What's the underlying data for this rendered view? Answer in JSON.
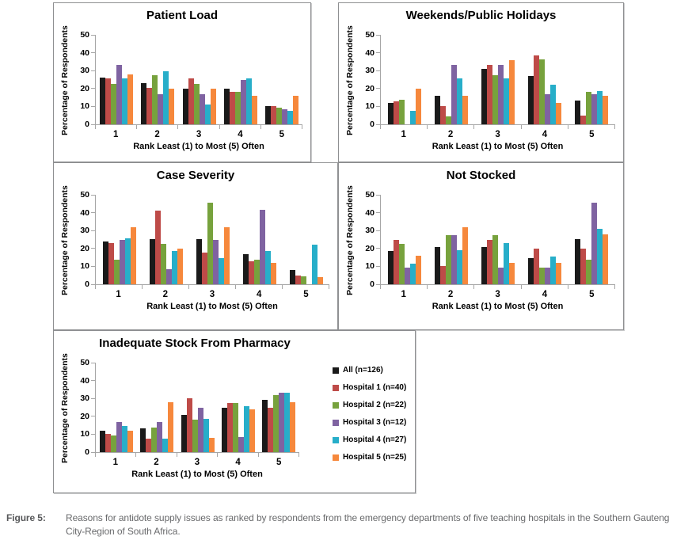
{
  "figure": {
    "caption_label": "Figure 5:",
    "caption_text": "Reasons for antidote supply issues as ranked by respondents from the emergency departments of five teaching hospitals in the Southern Gauteng City-Region of South Africa."
  },
  "axes": {
    "yticks": [
      50,
      40,
      30,
      20,
      10,
      0
    ],
    "ylim": [
      0,
      50
    ],
    "grid": false
  },
  "legend": [
    {
      "label": "All (n=126)",
      "color": "#1a1a1a"
    },
    {
      "label": "Hospital 1 (n=40)",
      "color": "#be4b48"
    },
    {
      "label": "Hospital 2 (n=22)",
      "color": "#77a23d"
    },
    {
      "label": "Hospital 3 (n=12)",
      "color": "#7f63a1"
    },
    {
      "label": "Hospital 4 (n=27)",
      "color": "#27aec9"
    },
    {
      "label": "Hospital 5 (n=25)",
      "color": "#f6883c"
    }
  ],
  "chart_data": [
    {
      "type": "bar",
      "title": "Patient Load",
      "xlabel": "Rank Least (1) to Most (5) Often",
      "ylabel": "Percentage of Respondents",
      "ylim": [
        0,
        50
      ],
      "categories": [
        "1",
        "2",
        "3",
        "4",
        "5"
      ],
      "series": [
        {
          "name": "All (n=126)",
          "color": "#1a1a1a",
          "values": [
            26.2,
            23.0,
            19.8,
            19.8,
            10.3
          ]
        },
        {
          "name": "Hospital 1 (n=40)",
          "color": "#be4b48",
          "values": [
            25.5,
            20.3,
            25.5,
            18.0,
            10.0
          ]
        },
        {
          "name": "Hospital 2 (n=22)",
          "color": "#77a23d",
          "values": [
            22.7,
            27.3,
            22.7,
            18.2,
            9.1
          ]
        },
        {
          "name": "Hospital 3 (n=12)",
          "color": "#7f63a1",
          "values": [
            33.3,
            16.7,
            16.7,
            25.0,
            8.3
          ]
        },
        {
          "name": "Hospital 4 (n=27)",
          "color": "#27aec9",
          "values": [
            25.9,
            29.6,
            11.1,
            25.9,
            7.4
          ]
        },
        {
          "name": "Hospital 5 (n=25)",
          "color": "#f6883c",
          "values": [
            28.0,
            20.0,
            20.0,
            16.0,
            16.0
          ]
        }
      ]
    },
    {
      "type": "bar",
      "title": "Weekends/Public Holidays",
      "xlabel": "Rank Least (1) to Most (5) Often",
      "ylabel": "Percentage of Respondents",
      "ylim": [
        0,
        50
      ],
      "categories": [
        "1",
        "2",
        "3",
        "4",
        "5"
      ],
      "series": [
        {
          "name": "All (n=126)",
          "color": "#1a1a1a",
          "values": [
            11.9,
            15.9,
            31.0,
            27.2,
            13.5
          ]
        },
        {
          "name": "Hospital 1 (n=40)",
          "color": "#be4b48",
          "values": [
            12.8,
            10.3,
            33.3,
            38.5,
            5.1
          ]
        },
        {
          "name": "Hospital 2 (n=22)",
          "color": "#77a23d",
          "values": [
            13.6,
            4.5,
            27.3,
            36.4,
            18.2
          ]
        },
        {
          "name": "Hospital 3 (n=12)",
          "color": "#7f63a1",
          "values": [
            0,
            33.3,
            33.3,
            16.7,
            16.7
          ]
        },
        {
          "name": "Hospital 4 (n=27)",
          "color": "#27aec9",
          "values": [
            7.4,
            25.9,
            25.9,
            22.2,
            18.5
          ]
        },
        {
          "name": "Hospital 5 (n=25)",
          "color": "#f6883c",
          "values": [
            20.0,
            16.0,
            36.0,
            12.0,
            16.0
          ]
        }
      ]
    },
    {
      "type": "bar",
      "title": "Case Severity",
      "xlabel": "Rank Least (1) to Most (5) Often",
      "ylabel": "Percentage of Respondents",
      "ylim": [
        0,
        50
      ],
      "categories": [
        "1",
        "2",
        "3",
        "4",
        "5"
      ],
      "series": [
        {
          "name": "All (n=126)",
          "color": "#1a1a1a",
          "values": [
            23.8,
            25.4,
            25.4,
            16.7,
            7.9
          ]
        },
        {
          "name": "Hospital 1 (n=40)",
          "color": "#be4b48",
          "values": [
            23.1,
            41.0,
            17.9,
            12.8,
            5.1
          ]
        },
        {
          "name": "Hospital 2 (n=22)",
          "color": "#77a23d",
          "values": [
            13.6,
            22.7,
            45.5,
            13.6,
            4.5
          ]
        },
        {
          "name": "Hospital 3 (n=12)",
          "color": "#7f63a1",
          "values": [
            25.0,
            8.3,
            25.0,
            41.7,
            0
          ]
        },
        {
          "name": "Hospital 4 (n=27)",
          "color": "#27aec9",
          "values": [
            25.9,
            18.5,
            14.8,
            18.5,
            22.2
          ]
        },
        {
          "name": "Hospital 5 (n=25)",
          "color": "#f6883c",
          "values": [
            32.0,
            20.0,
            32.0,
            12.0,
            4.0
          ]
        }
      ]
    },
    {
      "type": "bar",
      "title": "Not Stocked",
      "xlabel": "Rank Least (1) to Most (5) Often",
      "ylabel": "Percentage of Respondents",
      "ylim": [
        0,
        50
      ],
      "categories": [
        "1",
        "2",
        "3",
        "4",
        "5"
      ],
      "series": [
        {
          "name": "All (n=126)",
          "color": "#1a1a1a",
          "values": [
            18.7,
            21.0,
            21.0,
            14.6,
            25.2
          ]
        },
        {
          "name": "Hospital 1 (n=40)",
          "color": "#be4b48",
          "values": [
            25.0,
            10.3,
            25.0,
            20.0,
            20.0
          ]
        },
        {
          "name": "Hospital 2 (n=22)",
          "color": "#77a23d",
          "values": [
            22.7,
            27.3,
            27.3,
            9.1,
            13.6
          ]
        },
        {
          "name": "Hospital 3 (n=12)",
          "color": "#7f63a1",
          "values": [
            9.1,
            27.3,
            9.1,
            9.1,
            45.5
          ]
        },
        {
          "name": "Hospital 4 (n=27)",
          "color": "#27aec9",
          "values": [
            11.5,
            19.2,
            23.1,
            15.4,
            30.8
          ]
        },
        {
          "name": "Hospital 5 (n=25)",
          "color": "#f6883c",
          "values": [
            16.0,
            32.0,
            12.0,
            12.0,
            28.0
          ]
        }
      ]
    },
    {
      "type": "bar",
      "title": "Inadequate Stock From Pharmacy",
      "xlabel": "Rank Least (1) to Most (5) Often",
      "ylabel": "Percentage of Respondents",
      "ylim": [
        0,
        50
      ],
      "categories": [
        "1",
        "2",
        "3",
        "4",
        "5"
      ],
      "series": [
        {
          "name": "All (n=126)",
          "color": "#1a1a1a",
          "values": [
            12.0,
            13.5,
            20.6,
            24.6,
            29.4
          ]
        },
        {
          "name": "Hospital 1 (n=40)",
          "color": "#be4b48",
          "values": [
            10.0,
            7.5,
            30.0,
            27.5,
            25.0
          ]
        },
        {
          "name": "Hospital 2 (n=22)",
          "color": "#77a23d",
          "values": [
            9.1,
            13.6,
            18.2,
            27.3,
            31.8
          ]
        },
        {
          "name": "Hospital 3 (n=12)",
          "color": "#7f63a1",
          "values": [
            16.7,
            16.7,
            25.0,
            8.3,
            33.3
          ]
        },
        {
          "name": "Hospital 4 (n=27)",
          "color": "#27aec9",
          "values": [
            14.8,
            7.4,
            18.5,
            25.9,
            33.3
          ]
        },
        {
          "name": "Hospital 5 (n=25)",
          "color": "#f6883c",
          "values": [
            12.0,
            28.0,
            8.0,
            24.0,
            28.0
          ]
        }
      ]
    }
  ]
}
